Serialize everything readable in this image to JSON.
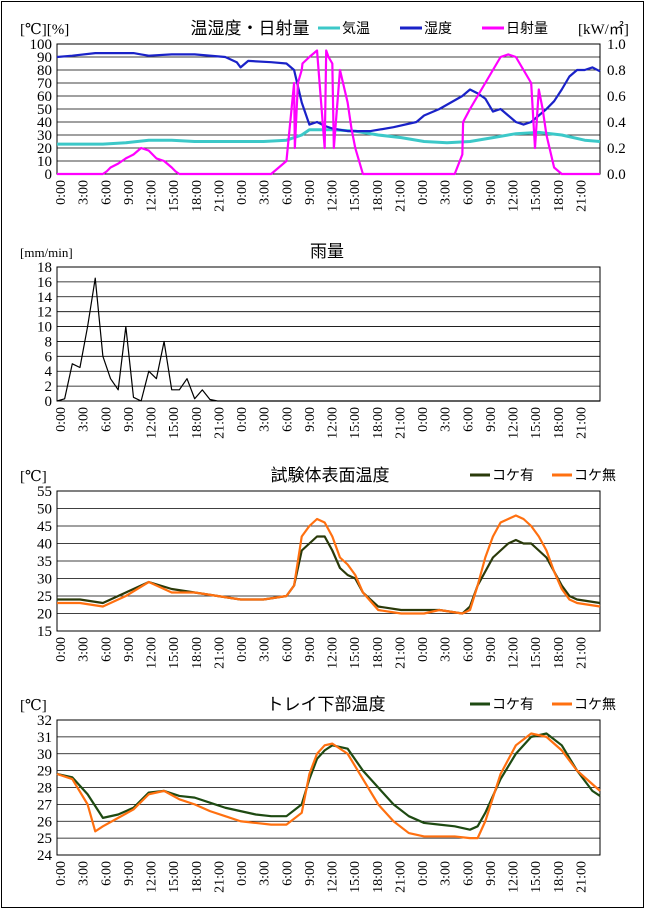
{
  "chart_data": [
    {
      "type": "line",
      "title": "温湿度・日射量",
      "y_unit_left": "[℃][%]",
      "y_unit_right": "[kW/㎡]",
      "ylim": [
        0,
        100
      ],
      "ylim_right": [
        0,
        1.0
      ],
      "yticks": [
        0,
        10,
        20,
        30,
        40,
        50,
        60,
        70,
        80,
        90,
        100
      ],
      "yticks_right": [
        "0.0",
        "0.2",
        "0.4",
        "0.6",
        "0.8",
        "1.0"
      ],
      "x_ticks": [
        "0:00",
        "3:00",
        "6:00",
        "9:00",
        "12:00",
        "15:00",
        "18:00",
        "21:00",
        "0:00",
        "3:00",
        "6:00",
        "9:00",
        "12:00",
        "15:00",
        "18:00",
        "21:00",
        "0:00",
        "3:00",
        "6:00",
        "9:00",
        "12:00",
        "15:00",
        "18:00",
        "21:00"
      ],
      "x_hours": [
        0,
        71
      ],
      "legend_position": "top-right",
      "series": [
        {
          "name": "気温",
          "color": "#3cc8c8",
          "axis": "left",
          "x": [
            0,
            6,
            9,
            12,
            15,
            18,
            21,
            24,
            27,
            30,
            32,
            33,
            36,
            39,
            42,
            45,
            48,
            51,
            54,
            57,
            60,
            63,
            66,
            69,
            71
          ],
          "y": [
            23,
            23,
            24,
            26,
            26,
            25,
            25,
            25,
            25,
            26,
            30,
            34,
            34,
            33,
            30,
            28,
            25,
            24,
            25,
            28,
            31,
            32,
            30,
            26,
            25
          ]
        },
        {
          "name": "湿度",
          "color": "#1a22c8",
          "axis": "left",
          "x": [
            0,
            2,
            5,
            8,
            10,
            11,
            12,
            15,
            18,
            22,
            23.5,
            24,
            25,
            28,
            30,
            31,
            32,
            33,
            34,
            35,
            36,
            38,
            41,
            44,
            47,
            48,
            50,
            53,
            54,
            55,
            56,
            57,
            58,
            59,
            60,
            61,
            62,
            63,
            64,
            65,
            66,
            67,
            68,
            69,
            70,
            71
          ],
          "y": [
            90,
            91,
            93,
            93,
            93,
            92,
            91,
            92,
            92,
            90,
            86,
            82,
            87,
            86,
            85,
            80,
            55,
            38,
            40,
            37,
            35,
            33,
            33,
            36,
            40,
            45,
            50,
            60,
            65,
            62,
            58,
            48,
            50,
            45,
            40,
            38,
            40,
            45,
            50,
            56,
            65,
            75,
            80,
            80,
            82,
            79
          ]
        },
        {
          "name": "日射量",
          "color": "#ff00ff",
          "axis": "right",
          "x": [
            0,
            6,
            6.5,
            7,
            8,
            9,
            10,
            11,
            12,
            13,
            14,
            15,
            15.5,
            16,
            24,
            28,
            30,
            31,
            31.1,
            31.5,
            32,
            32.1,
            33,
            34,
            35,
            35.2,
            35.5,
            36,
            36.2,
            37,
            38,
            38.5,
            39,
            40,
            48,
            52,
            53,
            53.1,
            54,
            56,
            57,
            58,
            59,
            60,
            61,
            62,
            62.5,
            63,
            63.5,
            64,
            65,
            66,
            72
          ],
          "y": [
            0,
            0,
            0.02,
            0.05,
            0.08,
            0.12,
            0.15,
            0.2,
            0.18,
            0.12,
            0.1,
            0.05,
            0.02,
            0,
            0,
            0,
            0.1,
            0.7,
            0.2,
            0.7,
            0.8,
            0.85,
            0.9,
            0.95,
            0.2,
            0.95,
            0.9,
            0.85,
            0.2,
            0.8,
            0.55,
            0.35,
            0.2,
            0,
            0,
            0,
            0.15,
            0.4,
            0.5,
            0.7,
            0.8,
            0.9,
            0.92,
            0.9,
            0.8,
            0.7,
            0.2,
            0.65,
            0.5,
            0.3,
            0.05,
            0,
            0
          ]
        }
      ]
    },
    {
      "type": "line",
      "title": "雨量",
      "y_unit_left": "[mm/min]",
      "ylim": [
        0,
        18
      ],
      "yticks": [
        0,
        2,
        4,
        6,
        8,
        10,
        12,
        14,
        16,
        18
      ],
      "x_ticks": [
        "0:00",
        "3:00",
        "6:00",
        "9:00",
        "12:00",
        "15:00",
        "18:00",
        "21:00",
        "0:00",
        "3:00",
        "6:00",
        "9:00",
        "12:00",
        "15:00",
        "18:00",
        "21:00",
        "0:00",
        "3:00",
        "6:00",
        "9:00",
        "12:00",
        "15:00",
        "18:00",
        "21:00"
      ],
      "x_hours": [
        0,
        71
      ],
      "series": [
        {
          "name": "",
          "color": "#000000",
          "axis": "left",
          "x": [
            0,
            1,
            2,
            3,
            4,
            5,
            6,
            7,
            8,
            9,
            10,
            11,
            12,
            13,
            14,
            15,
            16,
            17,
            18,
            19,
            20,
            21,
            22,
            71
          ],
          "y": [
            0,
            0.3,
            5,
            4.5,
            10,
            16.5,
            6,
            3,
            1.5,
            10,
            0.5,
            0,
            4,
            3,
            8,
            1.5,
            1.5,
            3,
            0.3,
            1.5,
            0.2,
            0,
            0,
            0
          ]
        }
      ]
    },
    {
      "type": "line",
      "title": "試験体表面温度",
      "y_unit_left": "[℃]",
      "ylim": [
        15,
        55
      ],
      "yticks": [
        15,
        20,
        25,
        30,
        35,
        40,
        45,
        50,
        55
      ],
      "x_ticks": [
        "0:00",
        "3:00",
        "6:00",
        "9:00",
        "12:00",
        "15:00",
        "18:00",
        "21:00",
        "0:00",
        "3:00",
        "6:00",
        "9:00",
        "12:00",
        "15:00",
        "18:00",
        "21:00",
        "0:00",
        "3:00",
        "6:00",
        "9:00",
        "12:00",
        "15:00",
        "18:00",
        "21:00"
      ],
      "x_hours": [
        0,
        71
      ],
      "legend_position": "top-right",
      "series": [
        {
          "name": "コケ有",
          "color": "#2a3a0a",
          "axis": "left",
          "x": [
            0,
            3,
            6,
            9,
            12,
            15,
            18,
            21,
            24,
            27,
            30,
            31,
            32,
            33,
            34,
            35,
            36,
            37,
            38,
            39,
            40,
            42,
            45,
            48,
            50,
            53,
            54,
            55,
            56,
            57,
            58,
            59,
            60,
            61,
            62,
            63,
            64,
            65,
            66,
            67,
            68,
            71
          ],
          "y": [
            24,
            24,
            23,
            26,
            29,
            27,
            26,
            25,
            24,
            24,
            25,
            28,
            38,
            40,
            42,
            42,
            38,
            33,
            31,
            30,
            26,
            22,
            21,
            21,
            21,
            20,
            22,
            28,
            32,
            36,
            38,
            40,
            41,
            40,
            40,
            38,
            36,
            32,
            28,
            25,
            24,
            23
          ]
        },
        {
          "name": "コケ無",
          "color": "#ff7010",
          "axis": "left",
          "x": [
            0,
            3,
            6,
            9,
            12,
            15,
            18,
            21,
            24,
            27,
            30,
            31,
            32,
            33,
            34,
            35,
            36,
            37,
            38,
            39,
            40,
            42,
            45,
            48,
            50,
            53,
            54,
            55,
            56,
            57,
            58,
            59,
            60,
            61,
            62,
            63,
            64,
            65,
            66,
            67,
            68,
            71
          ],
          "y": [
            23,
            23,
            22,
            25,
            29,
            26,
            26,
            25,
            24,
            24,
            25,
            28,
            42,
            45,
            47,
            46,
            42,
            36,
            34,
            31,
            26,
            21,
            20,
            20,
            21,
            20,
            21,
            28,
            36,
            42,
            46,
            47,
            48,
            47,
            45,
            42,
            38,
            32,
            27,
            24,
            23,
            22
          ]
        }
      ]
    },
    {
      "type": "line",
      "title": "トレイ下部温度",
      "y_unit_left": "[℃]",
      "ylim": [
        24,
        32
      ],
      "yticks": [
        24,
        25,
        26,
        27,
        28,
        29,
        30,
        31,
        32
      ],
      "x_ticks": [
        "0:00",
        "3:00",
        "6:00",
        "9:00",
        "12:00",
        "15:00",
        "18:00",
        "21:00",
        "0:00",
        "3:00",
        "6:00",
        "9:00",
        "12:00",
        "15:00",
        "18:00",
        "21:00",
        "0:00",
        "3:00",
        "6:00",
        "9:00",
        "12:00",
        "15:00",
        "18:00",
        "21:00"
      ],
      "x_hours": [
        0,
        71
      ],
      "legend_position": "top-right",
      "series": [
        {
          "name": "コケ有",
          "color": "#1e4a12",
          "axis": "left",
          "x": [
            0,
            2,
            4,
            6,
            8,
            10,
            12,
            14,
            16,
            18,
            20,
            22,
            24,
            26,
            28,
            30,
            32,
            33,
            34,
            35,
            36,
            38,
            40,
            42,
            44,
            46,
            48,
            50,
            52,
            54,
            55,
            56,
            58,
            60,
            62,
            64,
            66,
            68,
            70,
            71
          ],
          "y": [
            28.8,
            28.6,
            27.6,
            26.2,
            26.4,
            26.8,
            27.7,
            27.8,
            27.5,
            27.4,
            27.1,
            26.8,
            26.6,
            26.4,
            26.3,
            26.3,
            27.0,
            28.5,
            29.7,
            30.2,
            30.5,
            30.3,
            29.0,
            28.0,
            27.0,
            26.3,
            25.9,
            25.8,
            25.7,
            25.5,
            25.7,
            26.5,
            28.5,
            30.0,
            31.0,
            31.2,
            30.5,
            29.0,
            27.8,
            27.5
          ]
        },
        {
          "name": "コケ無",
          "color": "#ff7010",
          "axis": "left",
          "x": [
            0,
            2,
            4,
            5,
            6,
            8,
            10,
            12,
            14,
            16,
            18,
            20,
            22,
            24,
            26,
            28,
            30,
            32,
            33,
            34,
            35,
            36,
            38,
            40,
            42,
            44,
            46,
            48,
            50,
            52,
            54,
            55,
            56,
            58,
            60,
            62,
            64,
            66,
            68,
            70,
            71
          ],
          "y": [
            28.8,
            28.5,
            27.0,
            25.4,
            25.7,
            26.2,
            26.7,
            27.6,
            27.8,
            27.3,
            27.0,
            26.6,
            26.3,
            26.0,
            25.9,
            25.8,
            25.8,
            26.5,
            28.8,
            30.0,
            30.5,
            30.6,
            30.0,
            28.5,
            27.0,
            26.0,
            25.3,
            25.1,
            25.1,
            25.1,
            25.0,
            25.0,
            26.0,
            28.8,
            30.5,
            31.2,
            31.0,
            30.2,
            29.0,
            28.2,
            27.8
          ]
        }
      ]
    }
  ]
}
